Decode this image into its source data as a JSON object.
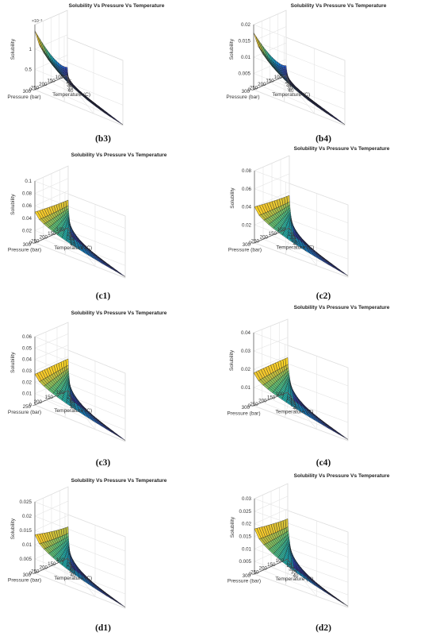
{
  "chart_data": [
    {
      "id": "b3",
      "type": "surface",
      "caption": "(b3)",
      "title": "Solubility Vs Pressure Vs Temperature",
      "xlabel": "Temperature (C)",
      "ylabel": "Pressure (bar)",
      "zlabel": "Solubility",
      "x_ticks": [
        "25",
        "30",
        "35",
        "40"
      ],
      "y_ticks": [
        "100",
        "150",
        "200",
        "250",
        "300"
      ],
      "z_ticks": [
        "0",
        "0.5",
        "1"
      ],
      "z_exponent": "×10⁻³",
      "zlim": [
        0,
        1.6
      ],
      "z_corner_high": 1.45,
      "z_corner_mid": 0.2,
      "z_floor": 0.02
    },
    {
      "id": "b4",
      "type": "surface",
      "caption": "(b4)",
      "title": "Solubility Vs Pressure Vs Temperature",
      "xlabel": "Temperature (C)",
      "ylabel": "Pressure (bar)",
      "zlabel": "Solubility",
      "x_ticks": [
        "25",
        "30",
        "35",
        "40"
      ],
      "y_ticks": [
        "100",
        "150",
        "200",
        "250",
        "300"
      ],
      "z_ticks": [
        "0",
        "0.005",
        "0.01",
        "0.015",
        "0.02"
      ],
      "z_exponent": "",
      "zlim": [
        0,
        0.02
      ],
      "z_corner_high": 0.0175,
      "z_corner_mid": 0.003,
      "z_floor": 0.0003
    },
    {
      "id": "c1",
      "type": "surface",
      "caption": "(c1)",
      "title": "Solubility Vs Pressure Vs Temperature",
      "xlabel": "Temperature (C)",
      "ylabel": "Pressure (bar)",
      "zlabel": "Solubility",
      "x_ticks": [
        "25",
        "30",
        "35",
        "40"
      ],
      "y_ticks": [
        "100",
        "150",
        "200",
        "250",
        "300"
      ],
      "z_ticks": [
        "0",
        "0.02",
        "0.04",
        "0.06",
        "0.08",
        "0.1"
      ],
      "z_exponent": "",
      "zlim": [
        0,
        0.1
      ],
      "z_corner_high": 0.05,
      "z_corner_mid": 0.045,
      "z_floor": 0.002
    },
    {
      "id": "c2",
      "type": "surface",
      "caption": "(c2)",
      "title": "Solubility Vs Pressure Vs Temperature",
      "xlabel": "Temperature (C)",
      "ylabel": "Pressure (bar)",
      "zlabel": "Solubility",
      "x_ticks": [
        "25",
        "30",
        "35",
        "40"
      ],
      "y_ticks": [
        "100",
        "150",
        "200",
        "250",
        "300"
      ],
      "z_ticks": [
        "0",
        "0.02",
        "0.04",
        "0.06",
        "0.08"
      ],
      "z_exponent": "",
      "zlim": [
        0,
        0.08
      ],
      "z_corner_high": 0.04,
      "z_corner_mid": 0.036,
      "z_floor": 0.0015
    },
    {
      "id": "c3",
      "type": "surface",
      "caption": "(c3)",
      "title": "Solubility Vs Pressure Vs Temperature",
      "xlabel": "Temperature (C)",
      "ylabel": "Pressure (bar)",
      "zlabel": "Solubility",
      "x_ticks": [
        "25",
        "30",
        "35",
        "40"
      ],
      "y_ticks": [
        "100",
        "150",
        "200",
        "250"
      ],
      "z_ticks": [
        "0",
        "0.01",
        "0.02",
        "0.03",
        "0.04",
        "0.05",
        "0.06"
      ],
      "z_exponent": "",
      "zlim": [
        0,
        0.06
      ],
      "z_corner_high": 0.027,
      "z_corner_mid": 0.028,
      "z_floor": 0.001
    },
    {
      "id": "c4",
      "type": "surface",
      "caption": "(c4)",
      "title": "Solubility Vs Pressure Vs Temperature",
      "xlabel": "Temperature (C)",
      "ylabel": "Pressure (bar)",
      "zlabel": "Solubility",
      "x_ticks": [
        "25",
        "30",
        "35",
        "40"
      ],
      "y_ticks": [
        "100",
        "150",
        "200",
        "250",
        "300"
      ],
      "z_ticks": [
        "0",
        "0.01",
        "0.02",
        "0.03",
        "0.04"
      ],
      "z_exponent": "",
      "zlim": [
        0,
        0.04
      ],
      "z_corner_high": 0.018,
      "z_corner_mid": 0.019,
      "z_floor": 0.0007
    },
    {
      "id": "d1",
      "type": "surface",
      "caption": "(d1)",
      "title": "Solubility Vs Pressure Vs Temperature",
      "xlabel": "Temperature (C)",
      "ylabel": "Pressure (bar)",
      "zlabel": "Solubility",
      "x_ticks": [
        "25",
        "30",
        "35",
        "40"
      ],
      "y_ticks": [
        "100",
        "150",
        "200",
        "250",
        "300"
      ],
      "z_ticks": [
        "0",
        "0.005",
        "0.01",
        "0.015",
        "0.02",
        "0.025"
      ],
      "z_exponent": "",
      "zlim": [
        0,
        0.025
      ],
      "z_corner_high": 0.0135,
      "z_corner_mid": 0.011,
      "z_floor": 0.0004
    },
    {
      "id": "d2",
      "type": "surface",
      "caption": "(d2)",
      "title": "Solubility Vs Pressure Vs Temperature",
      "xlabel": "Temperature (C)",
      "ylabel": "Pressure (bar)",
      "zlabel": "Solubility",
      "x_ticks": [
        "25",
        "30",
        "35",
        "40"
      ],
      "y_ticks": [
        "100",
        "150",
        "200",
        "250",
        "300"
      ],
      "z_ticks": [
        "0",
        "0.005",
        "0.01",
        "0.015",
        "0.02",
        "0.025",
        "0.03"
      ],
      "z_exponent": "",
      "zlim": [
        0,
        0.03
      ],
      "z_corner_high": 0.018,
      "z_corner_mid": 0.016,
      "z_floor": 0.0005
    }
  ]
}
